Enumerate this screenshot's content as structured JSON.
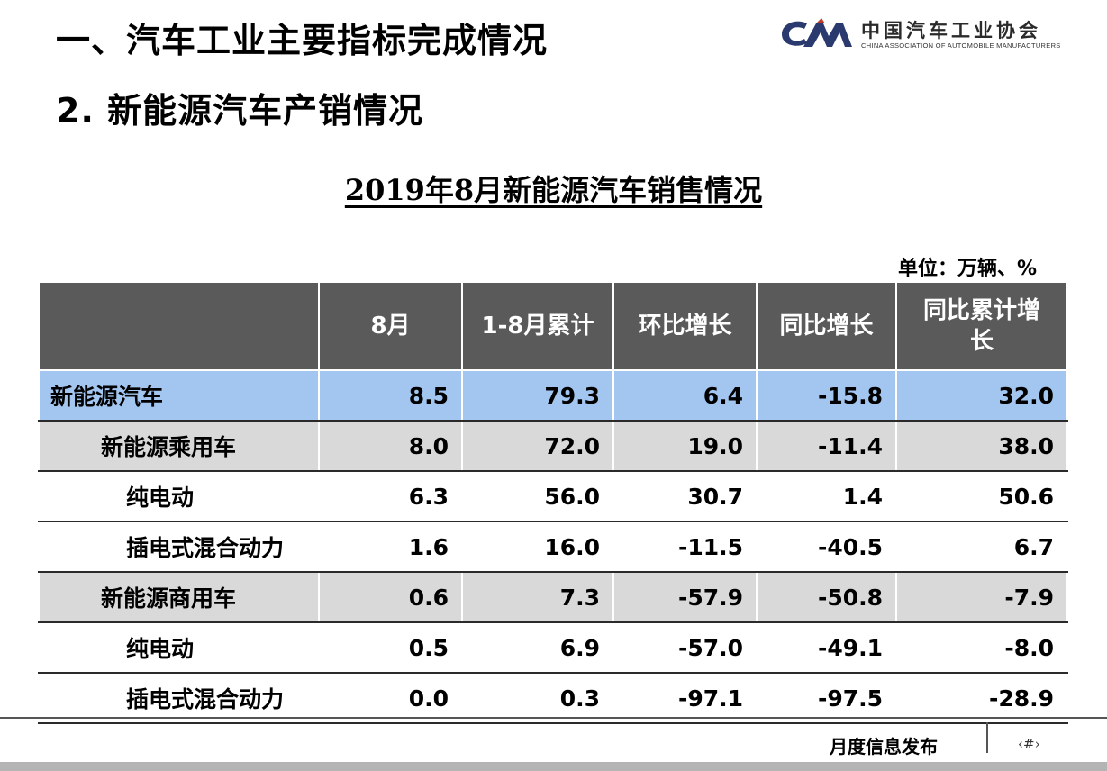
{
  "heading1": "一、汽车工业主要指标完成情况",
  "heading2": "2. 新能源汽车产销情况",
  "logo": {
    "cn": "中国汽车工业协会",
    "en": "CHINA ASSOCIATION OF AUTOMOBILE MANUFACTURERS",
    "colors": {
      "dark": "#2b3a6e",
      "accent": "#c0392b"
    }
  },
  "table_title": "2019年8月新能源汽车销售情况",
  "unit": "单位：万辆、%",
  "table": {
    "columns": [
      "",
      "8月",
      "1-8月累计",
      "环比增长",
      "同比增长",
      "同比累计增长"
    ],
    "rows": [
      {
        "name": "新能源汽车",
        "values": [
          "8.5",
          "79.3",
          "6.4",
          "-15.8",
          "32.0"
        ]
      },
      {
        "name": "新能源乘用车",
        "values": [
          "8.0",
          "72.0",
          "19.0",
          "-11.4",
          "38.0"
        ]
      },
      {
        "name": "纯电动",
        "values": [
          "6.3",
          "56.0",
          "30.7",
          "1.4",
          "50.6"
        ]
      },
      {
        "name": "插电式混合动力",
        "values": [
          "1.6",
          "16.0",
          "-11.5",
          "-40.5",
          "6.7"
        ]
      },
      {
        "name": "新能源商用车",
        "values": [
          "0.6",
          "7.3",
          "-57.9",
          "-50.8",
          "-7.9"
        ]
      },
      {
        "name": "纯电动",
        "values": [
          "0.5",
          "6.9",
          "-57.0",
          "-49.1",
          "-8.0"
        ]
      },
      {
        "name": "插电式混合动力",
        "values": [
          "0.0",
          "0.3",
          "-97.1",
          "-97.5",
          "-28.9"
        ]
      }
    ]
  },
  "footer": {
    "label": "月度信息发布",
    "page": "‹#›"
  },
  "colors": {
    "header_bg": "#5a5a5a",
    "highlight_row": "#a3c6f0",
    "gray_row": "#d9d9d9"
  }
}
